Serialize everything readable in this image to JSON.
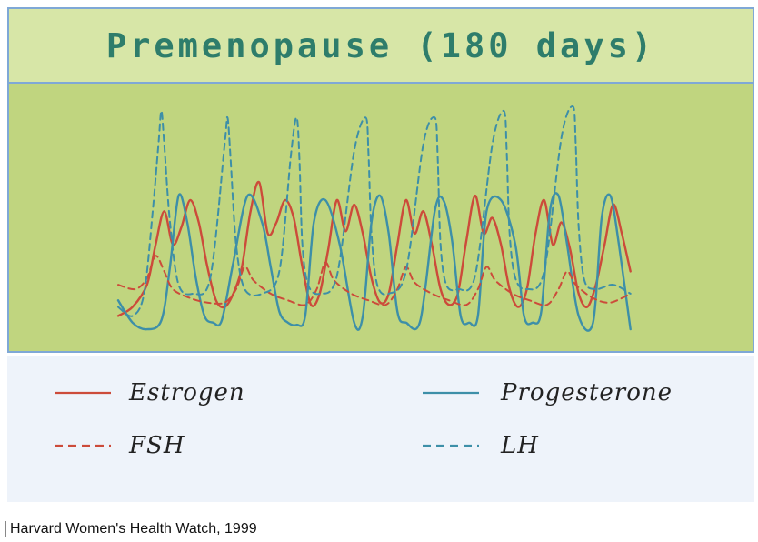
{
  "chart_data": {
    "type": "line",
    "title": "Premenopause (180 days)",
    "xlabel": "",
    "ylabel": "",
    "x_range": [
      0,
      180
    ],
    "y_range": [
      0,
      100
    ],
    "grid": false,
    "axes_visible": false,
    "series": [
      {
        "name": "Estrogen",
        "style": "solid",
        "color": "#cc4b3a",
        "x": [
          0,
          5,
          10,
          13,
          16,
          19,
          22,
          25,
          28,
          31,
          34,
          37,
          40,
          43,
          46,
          49,
          52,
          55,
          58,
          61,
          64,
          67,
          70,
          73,
          76,
          79,
          82,
          85,
          88,
          91,
          94,
          97,
          100,
          103,
          106,
          109,
          112,
          115,
          118,
          121,
          124,
          127,
          130,
          133,
          136,
          139,
          142,
          145,
          148,
          151,
          154,
          157,
          160,
          163,
          166,
          169,
          172,
          175,
          178
        ],
        "values": [
          8,
          12,
          22,
          40,
          55,
          40,
          48,
          60,
          50,
          30,
          15,
          12,
          18,
          30,
          55,
          68,
          45,
          50,
          60,
          52,
          30,
          13,
          18,
          38,
          60,
          46,
          58,
          45,
          25,
          14,
          18,
          40,
          60,
          45,
          55,
          40,
          20,
          13,
          18,
          42,
          62,
          45,
          52,
          40,
          20,
          12,
          20,
          45,
          60,
          40,
          50,
          38,
          18,
          12,
          22,
          40,
          58,
          45,
          28
        ]
      },
      {
        "name": "Progesterone",
        "style": "solid",
        "color": "#3d8fa8",
        "x": [
          0,
          5,
          10,
          15,
          18,
          21,
          24,
          27,
          30,
          33,
          36,
          40,
          45,
          50,
          53,
          56,
          59,
          62,
          65,
          68,
          72,
          77,
          82,
          85,
          88,
          91,
          94,
          97,
          100,
          105,
          110,
          113,
          116,
          119,
          122,
          125,
          128,
          133,
          138,
          141,
          144,
          147,
          150,
          153,
          156,
          160,
          165,
          168,
          171,
          174,
          178
        ],
        "values": [
          15,
          5,
          2,
          6,
          30,
          62,
          50,
          25,
          8,
          5,
          6,
          32,
          62,
          50,
          30,
          10,
          5,
          4,
          8,
          50,
          60,
          40,
          5,
          8,
          50,
          62,
          45,
          10,
          5,
          6,
          55,
          60,
          42,
          8,
          5,
          8,
          55,
          60,
          40,
          8,
          5,
          10,
          55,
          62,
          40,
          8,
          5,
          52,
          62,
          40,
          2
        ]
      },
      {
        "name": "FSH",
        "style": "dashed",
        "color": "#cc4b3a",
        "x": [
          0,
          6,
          10,
          13,
          16,
          19,
          25,
          31,
          37,
          41,
          44,
          47,
          53,
          59,
          65,
          69,
          72,
          75,
          81,
          87,
          93,
          97,
          100,
          103,
          109,
          115,
          121,
          125,
          128,
          131,
          137,
          143,
          149,
          153,
          156,
          159,
          165,
          171,
          178
        ],
        "values": [
          22,
          20,
          25,
          35,
          28,
          20,
          16,
          14,
          14,
          20,
          30,
          24,
          18,
          15,
          13,
          20,
          32,
          24,
          18,
          15,
          13,
          20,
          30,
          23,
          18,
          15,
          13,
          20,
          30,
          24,
          18,
          15,
          13,
          20,
          28,
          22,
          16,
          14,
          18
        ]
      },
      {
        "name": "LH",
        "style": "dashed",
        "color": "#3d8fa8",
        "x": [
          0,
          5,
          9,
          12,
          14,
          15,
          16,
          18,
          21,
          26,
          32,
          37,
          38,
          39,
          41,
          44,
          50,
          56,
          60,
          62,
          63,
          64,
          66,
          70,
          76,
          82,
          86,
          87,
          88,
          90,
          94,
          100,
          106,
          110,
          111,
          112,
          114,
          118,
          124,
          130,
          134,
          135,
          136,
          138,
          142,
          148,
          154,
          158,
          159,
          160,
          162,
          166,
          172,
          178
        ],
        "values": [
          12,
          8,
          18,
          55,
          85,
          100,
          85,
          50,
          22,
          18,
          25,
          85,
          97,
          80,
          40,
          20,
          18,
          28,
          80,
          97,
          78,
          40,
          22,
          18,
          26,
          82,
          97,
          80,
          45,
          22,
          18,
          28,
          85,
          97,
          80,
          40,
          22,
          20,
          26,
          85,
          100,
          82,
          45,
          25,
          20,
          28,
          88,
          102,
          85,
          48,
          24,
          20,
          22,
          18
        ]
      }
    ],
    "legend": {
      "placement": "bottom",
      "entries": [
        {
          "label": "Estrogen",
          "style": "solid",
          "color": "#cc4b3a"
        },
        {
          "label": "Progesterone",
          "style": "solid",
          "color": "#3d8fa8"
        },
        {
          "label": "FSH",
          "style": "dashed",
          "color": "#cc4b3a"
        },
        {
          "label": "LH",
          "style": "dashed",
          "color": "#3d8fa8"
        }
      ]
    }
  },
  "source": "Harvard Women's Health Watch, 1999",
  "colors": {
    "title_band": "#d7e6a7",
    "plot_background": "#c0d57f",
    "border": "#7fa8d6",
    "title_text": "#2e7d6b",
    "legend_background": "#eef3fa"
  }
}
